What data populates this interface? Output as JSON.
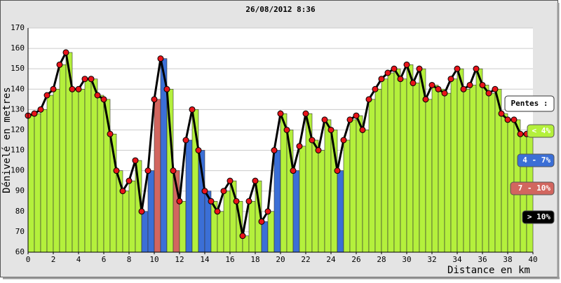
{
  "chart_data": {
    "type": "elevation-bar",
    "title": "26/08/2012 8:36",
    "x_label": "Distance en km",
    "y_label": "Dénivelé en metres",
    "x": [
      0,
      0.5,
      1,
      1.5,
      2,
      2.5,
      3,
      3.5,
      4,
      4.5,
      5,
      5.5,
      6,
      6.5,
      7,
      7.5,
      8,
      8.5,
      9,
      9.5,
      10,
      10.5,
      11,
      11.5,
      12,
      12.5,
      13,
      13.5,
      14,
      14.5,
      15,
      15.5,
      16,
      16.5,
      17,
      17.5,
      18,
      18.5,
      19,
      19.5,
      20,
      20.5,
      21,
      21.5,
      22,
      22.5,
      23,
      23.5,
      24,
      24.5,
      25,
      25.5,
      26,
      26.5,
      27,
      27.5,
      28,
      28.5,
      29,
      29.5,
      30,
      30.5,
      31,
      31.5,
      32,
      32.5,
      33,
      33.5,
      34,
      34.5,
      35,
      35.5,
      36,
      36.5,
      37,
      37.5,
      38,
      38.5,
      39,
      39.5
    ],
    "values": [
      127,
      128,
      130,
      137,
      140,
      152,
      158,
      140,
      140,
      145,
      145,
      137,
      135,
      118,
      100,
      90,
      95,
      105,
      80,
      100,
      135,
      155,
      140,
      100,
      85,
      115,
      130,
      110,
      90,
      85,
      80,
      90,
      95,
      85,
      68,
      85,
      95,
      75,
      80,
      110,
      128,
      120,
      100,
      112,
      128,
      115,
      110,
      125,
      120,
      100,
      115,
      125,
      127,
      120,
      135,
      140,
      145,
      148,
      150,
      145,
      152,
      143,
      150,
      135,
      142,
      140,
      138,
      145,
      150,
      140,
      142,
      150,
      142,
      138,
      140,
      128,
      125,
      125,
      118,
      118
    ],
    "slope_class": [
      0,
      0,
      0,
      0,
      0,
      0,
      0,
      0,
      0,
      0,
      0,
      0,
      0,
      0,
      0,
      0,
      0,
      0,
      1,
      1,
      2,
      1,
      0,
      2,
      0,
      1,
      0,
      1,
      1,
      0,
      0,
      0,
      0,
      0,
      0,
      0,
      0,
      1,
      0,
      1,
      0,
      0,
      1,
      0,
      0,
      0,
      0,
      0,
      0,
      1,
      0,
      0,
      0,
      0,
      0,
      0,
      0,
      0,
      0,
      0,
      0,
      0,
      0,
      0,
      0,
      0,
      0,
      0,
      0,
      0,
      0,
      0,
      0,
      0,
      0,
      0,
      0,
      0,
      0,
      0
    ],
    "marker_color": "#e8141a",
    "legend_title": "Pentes :",
    "legend": [
      {
        "name": "< 4%",
        "color": "#b4f03c"
      },
      {
        "name": "4 - 7%",
        "color": "#3b6fd6"
      },
      {
        "name": "7 - 10%",
        "color": "#d2665f"
      },
      {
        "name": "> 10%",
        "color": "#000000"
      }
    ],
    "xlim": [
      0,
      40
    ],
    "xticks": [
      0,
      2,
      4,
      6,
      8,
      10,
      12,
      14,
      16,
      18,
      20,
      22,
      24,
      26,
      28,
      30,
      32,
      34,
      36,
      38,
      40
    ],
    "ylim": [
      60,
      170
    ],
    "yticks": [
      60,
      70,
      80,
      90,
      100,
      110,
      120,
      130,
      140,
      150,
      160,
      170
    ],
    "grid": true
  }
}
